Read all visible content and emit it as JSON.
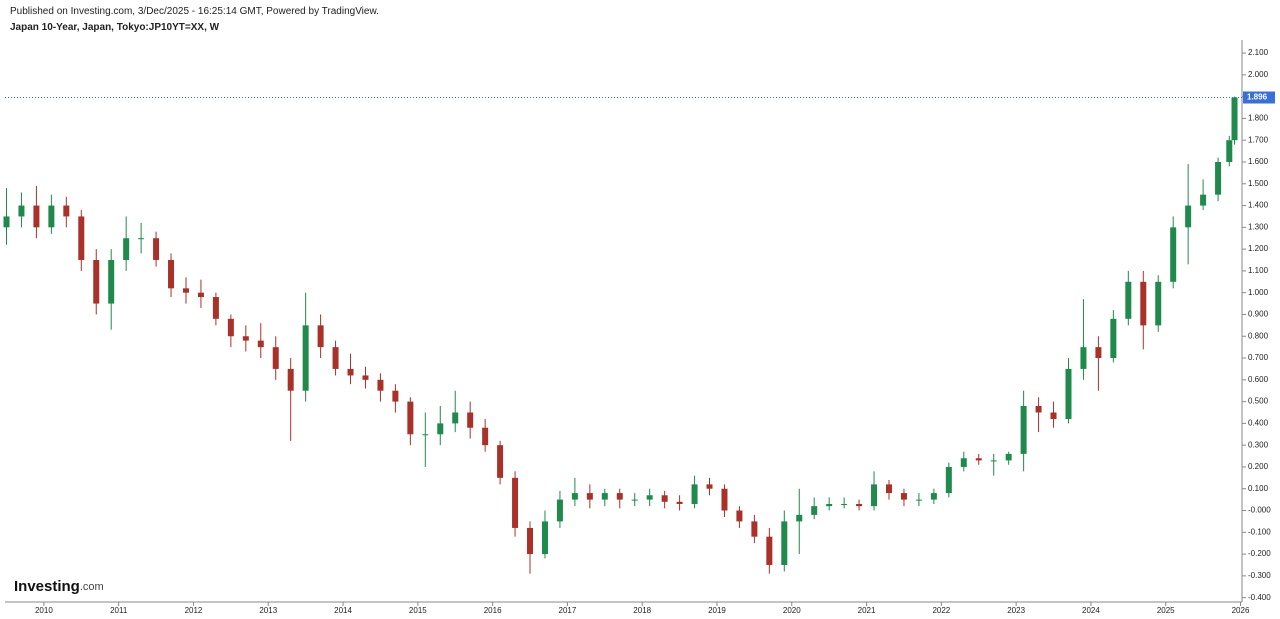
{
  "header": {
    "published": "Published on Investing.com, 3/Dec/2025 - 16:25:14 GMT, Powered by TradingView.",
    "instrument": "Japan 10-Year, Japan, Tokyo:JP10YT=XX, W"
  },
  "logo": {
    "name": "Investing",
    "suffix": ".com"
  },
  "chart_data": {
    "type": "candlestick",
    "up_color": "#1f8a4c",
    "down_color": "#a8322a",
    "price_line_color": "#3b6fd8",
    "xlim": [
      2009.48,
      2026.02
    ],
    "xticks": [
      2010,
      2011,
      2012,
      2013,
      2014,
      2015,
      2016,
      2017,
      2018,
      2019,
      2020,
      2021,
      2022,
      2023,
      2024,
      2025,
      2026
    ],
    "ylim": [
      -0.42,
      2.16
    ],
    "yticks": [
      {
        "value": -0.4,
        "label": "-0.400"
      },
      {
        "value": -0.3,
        "label": "-0.300"
      },
      {
        "value": -0.2,
        "label": "-0.200"
      },
      {
        "value": -0.1,
        "label": "-0.100"
      },
      {
        "value": 0,
        "label": "-0.000"
      },
      {
        "value": 0.1,
        "label": "0.100"
      },
      {
        "value": 0.2,
        "label": "0.200"
      },
      {
        "value": 0.3,
        "label": "0.300"
      },
      {
        "value": 0.4,
        "label": "0.400"
      },
      {
        "value": 0.5,
        "label": "0.500"
      },
      {
        "value": 0.6,
        "label": "0.600"
      },
      {
        "value": 0.7,
        "label": "0.700"
      },
      {
        "value": 0.8,
        "label": "0.800"
      },
      {
        "value": 0.9,
        "label": "0.900"
      },
      {
        "value": 1,
        "label": "1.000"
      },
      {
        "value": 1.1,
        "label": "1.100"
      },
      {
        "value": 1.2,
        "label": "1.200"
      },
      {
        "value": 1.3,
        "label": "1.300"
      },
      {
        "value": 1.4,
        "label": "1.400"
      },
      {
        "value": 1.5,
        "label": "1.500"
      },
      {
        "value": 1.6,
        "label": "1.600"
      },
      {
        "value": 1.7,
        "label": "1.700"
      },
      {
        "value": 1.8,
        "label": "1.800"
      },
      {
        "value": 1.9,
        "label": "1.900"
      },
      {
        "value": 2,
        "label": "2.000"
      },
      {
        "value": 2.1,
        "label": "2.100"
      }
    ],
    "x": [
      2009.5,
      2009.7,
      2009.9,
      2010.1,
      2010.3,
      2010.5,
      2010.7,
      2010.9,
      2011.1,
      2011.3,
      2011.5,
      2011.7,
      2011.9,
      2012.1,
      2012.3,
      2012.5,
      2012.7,
      2012.9,
      2013.1,
      2013.3,
      2013.5,
      2013.7,
      2013.9,
      2014.1,
      2014.3,
      2014.5,
      2014.7,
      2014.9,
      2015.1,
      2015.3,
      2015.5,
      2015.7,
      2015.9,
      2016.1,
      2016.3,
      2016.5,
      2016.7,
      2016.9,
      2017.1,
      2017.3,
      2017.5,
      2017.7,
      2017.9,
      2018.1,
      2018.3,
      2018.5,
      2018.7,
      2018.9,
      2019.1,
      2019.3,
      2019.5,
      2019.7,
      2019.9,
      2020.1,
      2020.3,
      2020.5,
      2020.7,
      2020.9,
      2021.1,
      2021.3,
      2021.5,
      2021.7,
      2021.9,
      2022.1,
      2022.3,
      2022.5,
      2022.7,
      2022.9,
      2023.1,
      2023.3,
      2023.5,
      2023.7,
      2023.9,
      2024.1,
      2024.3,
      2024.5,
      2024.7,
      2024.9,
      2025.1,
      2025.3,
      2025.5,
      2025.7,
      2025.85,
      2025.92
    ],
    "open": [
      1.3,
      1.35,
      1.4,
      1.3,
      1.4,
      1.35,
      1.15,
      0.95,
      1.15,
      1.25,
      1.25,
      1.15,
      1.02,
      1.0,
      0.98,
      0.88,
      0.8,
      0.78,
      0.75,
      0.65,
      0.55,
      0.85,
      0.75,
      0.65,
      0.62,
      0.6,
      0.55,
      0.5,
      0.35,
      0.35,
      0.4,
      0.45,
      0.38,
      0.3,
      0.15,
      -0.08,
      -0.2,
      -0.05,
      0.05,
      0.08,
      0.05,
      0.08,
      0.05,
      0.05,
      0.07,
      0.04,
      0.03,
      0.12,
      0.1,
      0.0,
      -0.05,
      -0.12,
      -0.25,
      -0.05,
      -0.02,
      0.02,
      0.03,
      0.03,
      0.02,
      0.12,
      0.08,
      0.05,
      0.05,
      0.08,
      0.2,
      0.24,
      0.23,
      0.23,
      0.26,
      0.48,
      0.45,
      0.42,
      0.65,
      0.75,
      0.7,
      0.88,
      1.05,
      0.85,
      1.05,
      1.3,
      1.4,
      1.45,
      1.6,
      1.7
    ],
    "high": [
      1.48,
      1.46,
      1.49,
      1.45,
      1.44,
      1.38,
      1.2,
      1.2,
      1.35,
      1.32,
      1.28,
      1.18,
      1.07,
      1.06,
      1.0,
      0.9,
      0.85,
      0.86,
      0.8,
      0.7,
      1.0,
      0.9,
      0.78,
      0.72,
      0.66,
      0.63,
      0.58,
      0.52,
      0.45,
      0.48,
      0.55,
      0.5,
      0.42,
      0.32,
      0.18,
      -0.05,
      0.0,
      0.09,
      0.15,
      0.12,
      0.1,
      0.1,
      0.08,
      0.1,
      0.09,
      0.07,
      0.16,
      0.15,
      0.12,
      0.02,
      -0.02,
      -0.08,
      0.0,
      0.1,
      0.06,
      0.06,
      0.06,
      0.05,
      0.18,
      0.14,
      0.1,
      0.08,
      0.1,
      0.22,
      0.27,
      0.26,
      0.26,
      0.27,
      0.55,
      0.52,
      0.5,
      0.7,
      0.97,
      0.8,
      0.92,
      1.1,
      1.1,
      1.08,
      1.35,
      1.59,
      1.52,
      1.62,
      1.72,
      1.9
    ],
    "low": [
      1.22,
      1.3,
      1.25,
      1.27,
      1.3,
      1.1,
      0.9,
      0.83,
      1.1,
      1.18,
      1.12,
      0.98,
      0.95,
      0.93,
      0.85,
      0.75,
      0.73,
      0.7,
      0.6,
      0.32,
      0.5,
      0.7,
      0.62,
      0.58,
      0.56,
      0.5,
      0.45,
      0.3,
      0.2,
      0.3,
      0.36,
      0.33,
      0.27,
      0.12,
      -0.12,
      -0.29,
      -0.22,
      -0.08,
      0.02,
      0.01,
      0.02,
      0.01,
      0.02,
      0.02,
      0.01,
      0.0,
      0.01,
      0.07,
      -0.03,
      -0.08,
      -0.15,
      -0.29,
      -0.28,
      -0.2,
      -0.04,
      0.0,
      0.01,
      0.0,
      0.0,
      0.05,
      0.02,
      0.02,
      0.03,
      0.06,
      0.18,
      0.21,
      0.16,
      0.21,
      0.18,
      0.36,
      0.38,
      0.4,
      0.6,
      0.55,
      0.68,
      0.85,
      0.74,
      0.82,
      1.02,
      1.13,
      1.38,
      1.42,
      1.58,
      1.68
    ],
    "close": [
      1.35,
      1.4,
      1.3,
      1.4,
      1.35,
      1.15,
      0.95,
      1.15,
      1.25,
      1.25,
      1.15,
      1.02,
      1.0,
      0.98,
      0.88,
      0.8,
      0.78,
      0.75,
      0.65,
      0.55,
      0.85,
      0.75,
      0.65,
      0.62,
      0.6,
      0.55,
      0.5,
      0.35,
      0.35,
      0.4,
      0.45,
      0.38,
      0.3,
      0.15,
      -0.08,
      -0.2,
      -0.05,
      0.05,
      0.08,
      0.05,
      0.08,
      0.05,
      0.05,
      0.07,
      0.04,
      0.03,
      0.12,
      0.1,
      0.0,
      -0.05,
      -0.12,
      -0.25,
      -0.05,
      -0.02,
      0.02,
      0.03,
      0.03,
      0.02,
      0.12,
      0.08,
      0.05,
      0.05,
      0.08,
      0.2,
      0.24,
      0.23,
      0.23,
      0.26,
      0.48,
      0.45,
      0.42,
      0.65,
      0.75,
      0.7,
      0.88,
      1.05,
      0.85,
      1.05,
      1.3,
      1.4,
      1.45,
      1.6,
      1.7,
      1.896
    ]
  }
}
